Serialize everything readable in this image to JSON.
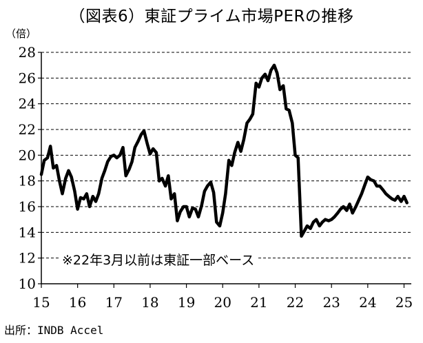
{
  "chart_data": {
    "type": "line",
    "title": "（図表6）東証プライム市場PERの推移",
    "ylabel": "（倍）",
    "xlabel": "",
    "ylim": [
      10,
      28
    ],
    "yticks": [
      10,
      12,
      14,
      16,
      18,
      20,
      22,
      24,
      26,
      28
    ],
    "xlim": [
      2015.0,
      2025.2
    ],
    "xticks": [
      {
        "label": "15",
        "value": 2015
      },
      {
        "label": "16",
        "value": 2016
      },
      {
        "label": "17",
        "value": 2017
      },
      {
        "label": "18",
        "value": 2018
      },
      {
        "label": "19",
        "value": 2019
      },
      {
        "label": "20",
        "value": 2020
      },
      {
        "label": "21",
        "value": 2021
      },
      {
        "label": "22",
        "value": 2022
      },
      {
        "label": "23",
        "value": 2023
      },
      {
        "label": "24",
        "value": 2024
      },
      {
        "label": "25",
        "value": 2025
      }
    ],
    "grid": true,
    "annotation": "※22年3月以前は東証一部ベース",
    "source": "出所：INDB Accel",
    "colors": {
      "line": "#000000",
      "grid": "#000000",
      "background": "#ffffff"
    },
    "series": [
      {
        "name": "PER",
        "x": [
          2015.0,
          2015.08,
          2015.17,
          2015.25,
          2015.33,
          2015.42,
          2015.5,
          2015.58,
          2015.67,
          2015.75,
          2015.83,
          2015.92,
          2016.0,
          2016.08,
          2016.17,
          2016.25,
          2016.33,
          2016.42,
          2016.5,
          2016.58,
          2016.67,
          2016.75,
          2016.83,
          2016.92,
          2017.0,
          2017.08,
          2017.17,
          2017.25,
          2017.33,
          2017.42,
          2017.5,
          2017.58,
          2017.67,
          2017.75,
          2017.83,
          2017.92,
          2018.0,
          2018.08,
          2018.17,
          2018.25,
          2018.33,
          2018.42,
          2018.5,
          2018.58,
          2018.67,
          2018.75,
          2018.83,
          2018.92,
          2019.0,
          2019.08,
          2019.17,
          2019.25,
          2019.33,
          2019.42,
          2019.5,
          2019.58,
          2019.67,
          2019.75,
          2019.83,
          2019.92,
          2020.0,
          2020.08,
          2020.17,
          2020.25,
          2020.33,
          2020.42,
          2020.5,
          2020.58,
          2020.67,
          2020.75,
          2020.83,
          2020.92,
          2021.0,
          2021.08,
          2021.17,
          2021.25,
          2021.33,
          2021.42,
          2021.5,
          2021.58,
          2021.67,
          2021.75,
          2021.83,
          2021.92,
          2022.0,
          2022.08,
          2022.17,
          2022.25,
          2022.33,
          2022.42,
          2022.5,
          2022.58,
          2022.67,
          2022.75,
          2022.83,
          2022.92,
          2023.0,
          2023.08,
          2023.17,
          2023.25,
          2023.33,
          2023.42,
          2023.5,
          2023.58,
          2023.67,
          2023.75,
          2023.83,
          2023.92,
          2024.0,
          2024.08,
          2024.17,
          2024.25,
          2024.33,
          2024.42,
          2024.5,
          2024.58,
          2024.67,
          2024.75,
          2024.83,
          2024.92,
          2025.0,
          2025.08
        ],
        "values": [
          18.5,
          19.6,
          19.8,
          20.7,
          19.0,
          19.2,
          18.0,
          17.0,
          18.2,
          18.8,
          18.3,
          17.2,
          15.8,
          16.7,
          16.6,
          17.0,
          16.0,
          16.8,
          16.4,
          17.0,
          18.2,
          18.8,
          19.5,
          19.9,
          20.0,
          19.8,
          20.0,
          20.6,
          18.4,
          18.9,
          19.5,
          20.6,
          21.1,
          21.6,
          21.9,
          20.9,
          20.1,
          20.5,
          20.2,
          18.0,
          18.2,
          17.6,
          18.4,
          16.6,
          17.0,
          14.9,
          15.6,
          16.0,
          16.0,
          15.2,
          15.9,
          15.8,
          15.2,
          16.1,
          17.2,
          17.6,
          17.9,
          17.1,
          14.8,
          14.5,
          15.5,
          17.0,
          19.6,
          19.2,
          20.2,
          21.0,
          20.3,
          21.2,
          22.5,
          22.8,
          23.2,
          25.6,
          25.3,
          26.0,
          26.3,
          25.8,
          26.6,
          27.0,
          26.4,
          25.1,
          25.4,
          23.6,
          23.5,
          22.5,
          20.0,
          19.8,
          13.7,
          14.1,
          14.5,
          14.3,
          14.8,
          15.0,
          14.5,
          14.8,
          15.0,
          14.9,
          15.0,
          15.2,
          15.5,
          15.8,
          16.0,
          15.7,
          16.2,
          15.5,
          16.0,
          16.5,
          17.0,
          17.7,
          18.3,
          18.1,
          18.0,
          17.6,
          17.6,
          17.3,
          17.0,
          16.8,
          16.6,
          16.5,
          16.8,
          16.4,
          16.8,
          16.3
        ]
      }
    ]
  }
}
